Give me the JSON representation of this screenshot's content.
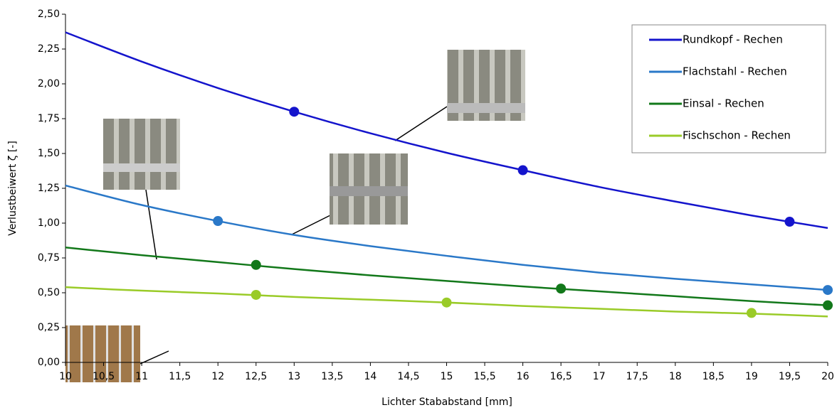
{
  "chart_data": {
    "type": "line",
    "xlabel": "Lichter Stababstand [mm]",
    "ylabel": "Verlustbeiwert ζ [-]",
    "xlim": [
      10,
      20
    ],
    "ylim": [
      0,
      2.5
    ],
    "xticks": [
      10,
      {
        "value": 10.5,
        "label": "10,5"
      },
      11,
      {
        "value": 11.5,
        "label": "11,5"
      },
      12,
      {
        "value": 12.5,
        "label": "12,5"
      },
      13,
      {
        "value": 13.5,
        "label": "13,5"
      },
      14,
      {
        "value": 14.5,
        "label": "14,5"
      },
      15,
      {
        "value": 15.5,
        "label": "15,5"
      },
      16,
      {
        "value": 16.5,
        "label": "16,5"
      },
      17,
      {
        "value": 17.5,
        "label": "17,5"
      },
      18,
      {
        "value": 18.5,
        "label": "18,5"
      },
      19,
      {
        "value": 19.5,
        "label": "19,5"
      },
      20
    ],
    "yticks": [
      {
        "value": 0,
        "label": "0,00"
      },
      {
        "value": 0.25,
        "label": "0,25"
      },
      {
        "value": 0.5,
        "label": "0,50"
      },
      {
        "value": 0.75,
        "label": "0,75"
      },
      {
        "value": 1,
        "label": "1,00"
      },
      {
        "value": 1.25,
        "label": "1,25"
      },
      {
        "value": 1.5,
        "label": "1,50"
      },
      {
        "value": 1.75,
        "label": "1,75"
      },
      {
        "value": 2,
        "label": "2,00"
      },
      {
        "value": 2.25,
        "label": "2,25"
      },
      {
        "value": 2.5,
        "label": "2,50"
      }
    ],
    "grid": false,
    "legend": "top-right",
    "series": [
      {
        "name": "Rundkopf - Rechen",
        "color": "#1414cc",
        "x": [
          10,
          11,
          12,
          13,
          14,
          15,
          16,
          17,
          18,
          19,
          20
        ],
        "values": [
          2.37,
          2.16,
          1.97,
          1.8,
          1.645,
          1.505,
          1.38,
          1.26,
          1.155,
          1.055,
          0.965
        ],
        "markers": {
          "x": [
            13,
            16,
            19.5
          ],
          "values": [
            1.8,
            1.38,
            1.01
          ]
        }
      },
      {
        "name": "Flachstahl - Rechen",
        "color": "#2a78c8",
        "x": [
          10,
          11,
          12,
          13,
          14,
          15,
          16,
          17,
          18,
          19,
          20
        ],
        "values": [
          1.27,
          1.13,
          1.015,
          0.915,
          0.835,
          0.765,
          0.7,
          0.645,
          0.6,
          0.56,
          0.52
        ],
        "markers": {
          "x": [
            12,
            20
          ],
          "values": [
            1.015,
            0.52
          ]
        }
      },
      {
        "name": "Einsal - Rechen",
        "color": "#12781a",
        "x": [
          10,
          11,
          12,
          13,
          14,
          15,
          16,
          17,
          18,
          19,
          20
        ],
        "values": [
          0.825,
          0.77,
          0.72,
          0.67,
          0.625,
          0.585,
          0.545,
          0.51,
          0.475,
          0.44,
          0.41
        ],
        "markers": {
          "x": [
            12.5,
            16.5,
            20
          ],
          "values": [
            0.7,
            0.53,
            0.41
          ]
        }
      },
      {
        "name": "Fischschon - Rechen",
        "color": "#9acb28",
        "x": [
          10,
          11,
          12,
          13,
          14,
          15,
          16,
          17,
          18,
          19,
          20
        ],
        "values": [
          0.54,
          0.515,
          0.495,
          0.47,
          0.45,
          0.43,
          0.405,
          0.385,
          0.365,
          0.35,
          0.33
        ],
        "markers": {
          "x": [
            12.5,
            15,
            19
          ],
          "values": [
            0.485,
            0.43,
            0.355
          ]
        }
      }
    ]
  }
}
